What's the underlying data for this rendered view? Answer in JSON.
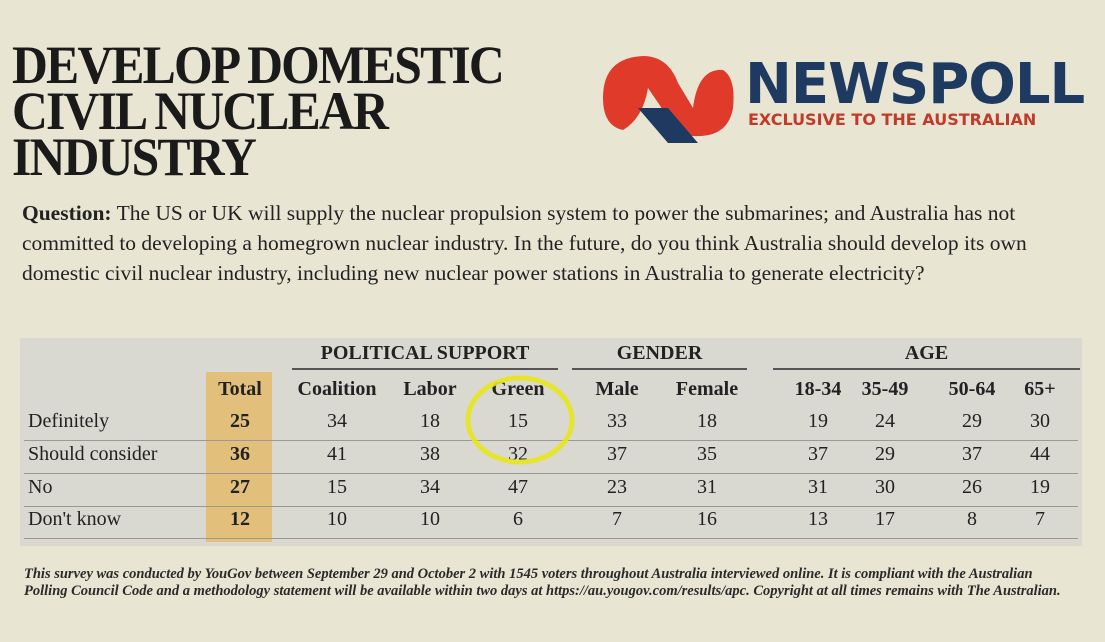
{
  "header": {
    "title_lines": [
      "DEVELOP DOMESTIC",
      "CIVIL NUCLEAR",
      "INDUSTRY"
    ],
    "brand": "NEWSPOLL",
    "brand_tagline": "EXCLUSIVE TO THE AUSTRALIAN"
  },
  "question": {
    "label": "Question:",
    "text": "The US or UK will supply the nuclear propulsion system to power the submarines; and Australia has not committed to developing a homegrown nuclear industry. In the future, do you think Australia should develop its own domestic civil nuclear industry, including new nuclear power stations in Australia to generate electricity?"
  },
  "table": {
    "groups": [
      "POLITICAL SUPPORT",
      "GENDER",
      "AGE"
    ],
    "columns": [
      "Total",
      "Coalition",
      "Labor",
      "Green",
      "Male",
      "Female",
      "18-34",
      "35-49",
      "50-64",
      "65+"
    ],
    "rows": [
      {
        "label": "Definitely",
        "values": [
          25,
          34,
          18,
          15,
          33,
          18,
          19,
          24,
          29,
          30
        ]
      },
      {
        "label": "Should consider",
        "values": [
          36,
          41,
          38,
          32,
          37,
          35,
          37,
          29,
          37,
          44
        ]
      },
      {
        "label": "No",
        "values": [
          27,
          15,
          34,
          47,
          23,
          31,
          31,
          30,
          26,
          19
        ]
      },
      {
        "label": "Don't know",
        "values": [
          12,
          10,
          10,
          6,
          7,
          16,
          13,
          17,
          8,
          7
        ]
      }
    ]
  },
  "footnote": "This survey was conducted by YouGov between September 29 and October 2 with 1545 voters throughout Australia interviewed online. It is compliant with the Australian Polling Council Code and a methodology statement will be available within two days at https://au.yougov.com/results/apc. Copyright at all times remains with The Australian."
}
